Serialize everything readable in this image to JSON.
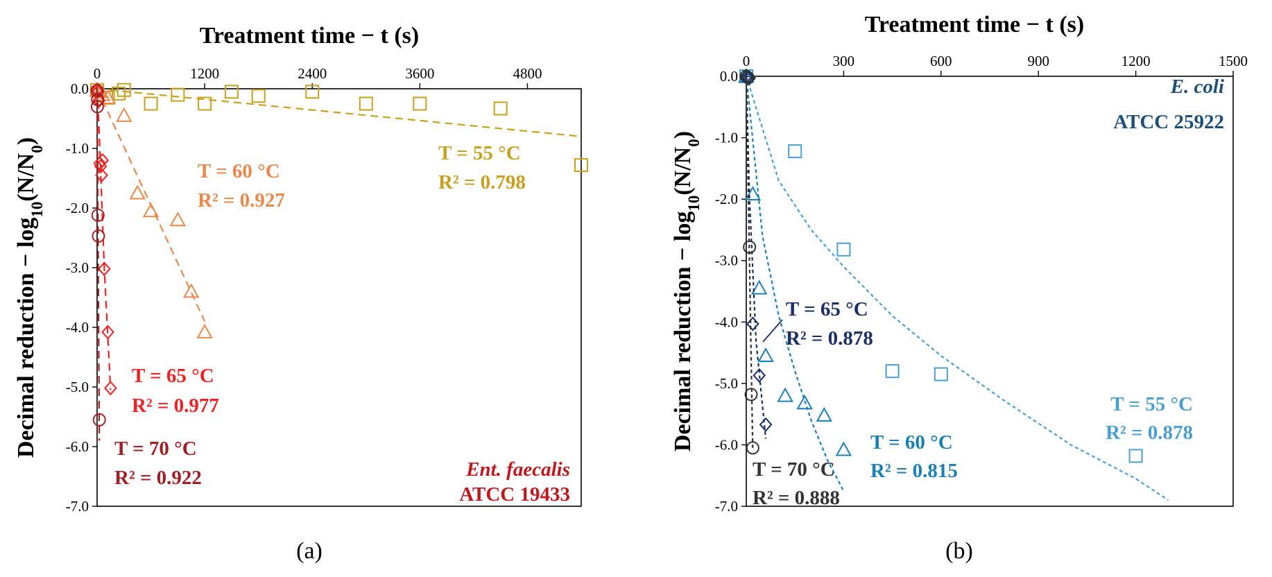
{
  "chart_data": [
    {
      "panel": "a",
      "type": "scatter",
      "title": "Treatment time − t (s)",
      "xlabel": "Treatment time − t (s)",
      "ylabel": "Decimal reduction − log10(N/N0)",
      "ylabel_parts": {
        "main": "Decimal reduction − log",
        "sub1": "10",
        "mid": "(N/N",
        "sub2": "0",
        "end": ")"
      },
      "xlim": [
        0,
        5400
      ],
      "ylim": [
        -7.0,
        0.0
      ],
      "x_ticks": [
        0,
        1200,
        2400,
        3600,
        4800
      ],
      "x_tick_labels": [
        "0",
        "1200",
        "2400",
        "3600",
        "4800"
      ],
      "y_ticks": [
        0,
        -1,
        -2,
        -3,
        -4,
        -5,
        -6,
        -7
      ],
      "y_tick_labels": [
        "0.0",
        "-1.0",
        "-2.0",
        "-3.0",
        "-4.0",
        "-5.0",
        "-6.0",
        "-7.0"
      ],
      "panel_label": "(a)",
      "organism": {
        "name": "Ent. faecalis",
        "strain": "ATCC 19433",
        "color": "#c0161c"
      },
      "series": [
        {
          "name": "T = 55 °C",
          "marker": "square",
          "color": "#c9a01e",
          "x": [
            0,
            120,
            240,
            300,
            600,
            900,
            1200,
            1500,
            1800,
            2400,
            3000,
            3600,
            4500,
            5400
          ],
          "y": [
            -0.02,
            -0.15,
            -0.08,
            -0.02,
            -0.25,
            -0.1,
            -0.25,
            -0.05,
            -0.12,
            -0.05,
            -0.25,
            -0.25,
            -0.33,
            -1.28
          ],
          "fit": {
            "x": [
              0,
              5400
            ],
            "y": [
              0,
              -0.8
            ]
          },
          "label_T": "T = 55 °C",
          "label_R2": "R² = 0.798"
        },
        {
          "name": "T = 60 °C",
          "marker": "triangle",
          "color": "#e8884a",
          "x": [
            0,
            30,
            60,
            120,
            300,
            450,
            600,
            900,
            1050,
            1200
          ],
          "y": [
            -0.02,
            -0.05,
            -0.1,
            -0.15,
            -0.45,
            -1.75,
            -2.05,
            -2.2,
            -3.4,
            -4.08
          ],
          "fit": {
            "x": [
              0,
              1200
            ],
            "y": [
              0,
              -3.9
            ]
          },
          "label_T": "T = 60 °C",
          "label_R2": "R² = 0.927"
        },
        {
          "name": "T = 65 °C",
          "marker": "diamond",
          "color": "#ee2222",
          "x": [
            0,
            10,
            20,
            30,
            40,
            50,
            60,
            80,
            120,
            150
          ],
          "y": [
            -0.02,
            -0.05,
            -0.2,
            -1.25,
            -1.3,
            -1.45,
            -1.2,
            -3.02,
            -4.08,
            -5.02
          ],
          "fit": {
            "x": [
              0,
              20,
              80,
              150
            ],
            "y": [
              0,
              -0.6,
              -3.0,
              -5.05
            ]
          },
          "label_T": "T = 65 °C",
          "label_R2": "R² = 0.977"
        },
        {
          "name": "T = 70 °C",
          "marker": "circle",
          "color": "#a11e23",
          "x": [
            0,
            3,
            6,
            10,
            15,
            25
          ],
          "y": [
            -0.03,
            -0.3,
            -0.18,
            -2.12,
            -2.47,
            -5.55
          ],
          "fit": {
            "x": [
              0,
              25
            ],
            "y": [
              0,
              -5.9
            ]
          },
          "label_T": "T = 70 °C",
          "label_R2": "R² = 0.922"
        }
      ]
    },
    {
      "panel": "b",
      "type": "scatter",
      "title": "Treatment time − t (s)",
      "xlabel": "Treatment time − t (s)",
      "ylabel": "Decimal reduction − log10(N/N0)",
      "ylabel_parts": {
        "main": "Decimal reduction − log",
        "sub1": "10",
        "mid": "(N/N",
        "sub2": "0",
        "end": ")"
      },
      "xlim": [
        0,
        1500
      ],
      "ylim": [
        -7.0,
        0.0
      ],
      "x_ticks": [
        0,
        300,
        600,
        900,
        1200,
        1500
      ],
      "x_tick_labels": [
        "0",
        "300",
        "600",
        "900",
        "1200",
        "1500"
      ],
      "y_ticks": [
        0,
        -1,
        -2,
        -3,
        -4,
        -5,
        -6,
        -7
      ],
      "y_tick_labels": [
        "0.0",
        "-1.0",
        "-2.0",
        "-3.0",
        "-4.0",
        "-5.0",
        "-6.0",
        "-7.0"
      ],
      "panel_label": "(b)",
      "organism": {
        "name": "E. coli",
        "strain": "ATCC 25922",
        "color": "#1b4f7a"
      },
      "series": [
        {
          "name": "T = 55 °C",
          "marker": "square",
          "color": "#4a9fd0",
          "x": [
            0,
            150,
            300,
            450,
            600,
            1200
          ],
          "y": [
            0,
            -1.22,
            -2.82,
            -4.8,
            -4.85,
            -6.18
          ],
          "fit": {
            "x": [
              0,
              100,
              200,
              300,
              450,
              600,
              800,
              1000,
              1200,
              1300
            ],
            "y": [
              0,
              -1.7,
              -2.5,
              -3.1,
              -3.9,
              -4.55,
              -5.3,
              -6.0,
              -6.55,
              -6.9
            ]
          },
          "label_T": "T = 55 °C",
          "label_R2": "R² = 0.878"
        },
        {
          "name": "T = 60 °C",
          "marker": "triangle",
          "color": "#1a7fb5",
          "x": [
            0,
            20,
            40,
            60,
            120,
            180,
            240,
            300
          ],
          "y": [
            0,
            -1.92,
            -3.45,
            -4.55,
            -5.2,
            -5.32,
            -5.52,
            -6.08
          ],
          "fit": {
            "x": [
              0,
              50,
              100,
              150,
              200,
              250,
              300
            ],
            "y": [
              0,
              -2.6,
              -3.9,
              -4.8,
              -5.6,
              -6.25,
              -6.75
            ]
          },
          "label_T": "T = 60 °C",
          "label_R2": "R² = 0.815"
        },
        {
          "name": "T = 65 °C",
          "marker": "diamond",
          "color": "#1b2f66",
          "x": [
            0,
            5,
            10,
            20,
            40,
            60
          ],
          "y": [
            0,
            -0.02,
            -0.03,
            -4.03,
            -4.87,
            -5.67
          ],
          "fit": {
            "x": [
              0,
              10,
              30,
              60
            ],
            "y": [
              0,
              -2.0,
              -4.3,
              -5.9
            ]
          },
          "label_T": "T = 65 °C",
          "label_R2": "R² = 0.878"
        },
        {
          "name": "T = 70 °C",
          "marker": "circle",
          "color": "#333333",
          "x": [
            0,
            5,
            10,
            15,
            20
          ],
          "y": [
            0,
            -0.02,
            -2.78,
            -5.18,
            -6.05
          ],
          "fit": {
            "x": [
              0,
              20
            ],
            "y": [
              0,
              -6.1
            ]
          },
          "label_T": "T = 70 °C",
          "label_R2": "R² = 0.888"
        }
      ]
    }
  ]
}
